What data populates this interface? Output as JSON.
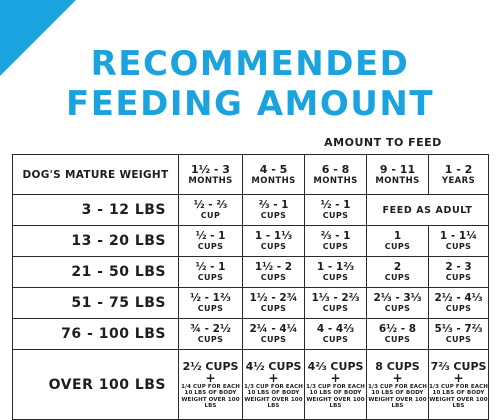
{
  "title_line1": "RECOMMENDED",
  "title_line2": "FEEDING AMOUNT",
  "amount_header": "AMOUNT TO FEED",
  "colors": {
    "accent": "#1ba3df",
    "text": "#1e1e1e",
    "border": "#2a2a2a"
  },
  "weight_header": "DOG'S MATURE WEIGHT",
  "ages": [
    {
      "range": "1½ - 3",
      "unit": "MONTHS"
    },
    {
      "range": "4 - 5",
      "unit": "MONTHS"
    },
    {
      "range": "6 - 8",
      "unit": "MONTHS"
    },
    {
      "range": "9 - 11",
      "unit": "MONTHS"
    },
    {
      "range": "1 - 2",
      "unit": "YEARS"
    }
  ],
  "rows": [
    {
      "weight": "3 - 12 LBS",
      "cells": [
        {
          "amount": "½ - ⅔",
          "unit": "CUP"
        },
        {
          "amount": "⅔ - 1",
          "unit": "CUPS"
        },
        {
          "amount": "½ - 1",
          "unit": "CUPS"
        }
      ],
      "span_text": "FEED AS ADULT"
    },
    {
      "weight": "13 - 20 LBS",
      "cells": [
        {
          "amount": "½ - 1",
          "unit": "CUPS"
        },
        {
          "amount": "1 - 1⅓",
          "unit": "CUPS"
        },
        {
          "amount": "⅔ - 1",
          "unit": "CUPS"
        },
        {
          "amount": "1",
          "unit": "CUPS"
        },
        {
          "amount": "1 - 1¼",
          "unit": "CUPS"
        }
      ]
    },
    {
      "weight": "21 - 50 LBS",
      "cells": [
        {
          "amount": "½ - 1",
          "unit": "CUPS"
        },
        {
          "amount": "1½ - 2",
          "unit": "CUPS"
        },
        {
          "amount": "1 - 1⅔",
          "unit": "CUPS"
        },
        {
          "amount": "2",
          "unit": "CUPS"
        },
        {
          "amount": "2 - 3",
          "unit": "CUPS"
        }
      ]
    },
    {
      "weight": "51 - 75 LBS",
      "cells": [
        {
          "amount": "½ - 1⅔",
          "unit": "CUPS"
        },
        {
          "amount": "1½ - 2¾",
          "unit": "CUPS"
        },
        {
          "amount": "1⅓ - 2⅔",
          "unit": "CUPS"
        },
        {
          "amount": "2⅓ - 3⅓",
          "unit": "CUPS"
        },
        {
          "amount": "2½ - 4⅓",
          "unit": "CUPS"
        }
      ]
    },
    {
      "weight": "76 - 100 LBS",
      "cells": [
        {
          "amount": "¾ - 2½",
          "unit": "CUPS"
        },
        {
          "amount": "2¼ - 4¼",
          "unit": "CUPS"
        },
        {
          "amount": "4 - 4⅔",
          "unit": "CUPS"
        },
        {
          "amount": "6½ - 8",
          "unit": "CUPS"
        },
        {
          "amount": "5⅓ - 7⅔",
          "unit": "CUPS"
        }
      ]
    },
    {
      "weight": "OVER 100 LBS",
      "cells": [
        {
          "amount": "2½ CUPS",
          "plus": "+",
          "note1": "1/4 CUP FOR EACH",
          "note2": "10 LBS OF BODY",
          "note3": "WEIGHT OVER 100 LBS"
        },
        {
          "amount": "4½ CUPS",
          "plus": "+",
          "note1": "1/3 CUP FOR EACH",
          "note2": "10 LBS OF BODY",
          "note3": "WEIGHT OVER 100 LBS"
        },
        {
          "amount": "4⅔ CUPS",
          "plus": "+",
          "note1": "1/3 CUP FOR EACH",
          "note2": "10 LBS OF BODY",
          "note3": "WEIGHT OVER 100 LBS"
        },
        {
          "amount": "8 CUPS",
          "plus": "+",
          "note1": "1/3 CUP FOR EACH",
          "note2": "10 LBS OF BODY",
          "note3": "WEIGHT OVER 100 LBS"
        },
        {
          "amount": "7⅔ CUPS",
          "plus": "+",
          "note1": "1/3 CUP FOR EACH",
          "note2": "10 LBS OF BODY",
          "note3": "WEIGHT OVER 100 LBS"
        }
      ]
    }
  ]
}
